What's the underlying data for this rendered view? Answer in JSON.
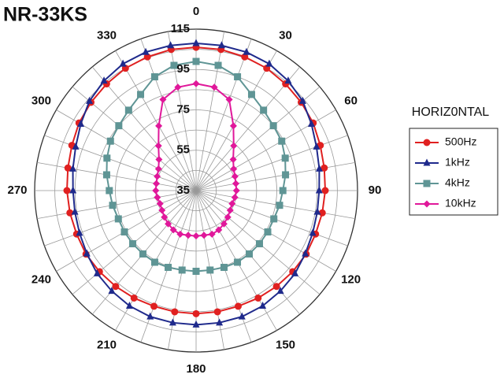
{
  "chart_data": {
    "type": "polar",
    "title": "NR-33KS",
    "legend_title": "HORIZ0NTAL",
    "theta": [
      0,
      10,
      20,
      30,
      40,
      50,
      60,
      70,
      80,
      90,
      100,
      110,
      120,
      130,
      140,
      150,
      160,
      170,
      180,
      190,
      200,
      210,
      220,
      230,
      240,
      250,
      260,
      270,
      280,
      290,
      300,
      310,
      320,
      330,
      340,
      350
    ],
    "thetaticks": [
      0,
      30,
      60,
      90,
      120,
      150,
      180,
      210,
      240,
      270,
      300,
      330
    ],
    "rlim": [
      35,
      115
    ],
    "rticks": [
      35,
      55,
      75,
      95,
      115
    ],
    "rgrid": [
      45,
      55,
      65,
      75,
      85,
      95,
      105,
      115
    ],
    "series": [
      {
        "name": "500Hz",
        "color": "#e02020",
        "marker": "circle",
        "values": [
          106,
          106,
          105.5,
          105,
          104,
          103,
          102,
          100.5,
          99.5,
          99,
          98.5,
          98,
          98,
          97.5,
          97,
          96.5,
          96,
          96,
          96,
          96,
          96,
          96.5,
          97,
          97.5,
          98,
          98,
          98.5,
          99,
          99.5,
          100.5,
          102,
          103,
          104,
          105,
          105.5,
          106
        ]
      },
      {
        "name": "1kHz",
        "color": "#1f2a8c",
        "marker": "triangle",
        "values": [
          108,
          108,
          108,
          107.5,
          106,
          104,
          101,
          98.5,
          97,
          96,
          96,
          96.5,
          97.5,
          99,
          100,
          101,
          101.5,
          101.5,
          101.5,
          101.5,
          101.5,
          101,
          100,
          99,
          97.5,
          96.5,
          96,
          96,
          97,
          98.5,
          101,
          104,
          106,
          107.5,
          108,
          108
        ]
      },
      {
        "name": "4kHz",
        "color": "#5f9595",
        "marker": "square",
        "values": [
          99,
          98,
          95,
          90,
          87,
          85,
          84,
          82,
          80,
          78,
          77,
          76,
          76,
          76,
          76,
          76,
          75.5,
          75,
          75,
          75,
          75.5,
          76,
          76,
          76,
          76,
          76,
          77,
          78,
          80,
          82,
          84,
          85,
          87,
          90,
          95,
          98
        ]
      },
      {
        "name": "10kHz",
        "color": "#e0189a",
        "marker": "diamond",
        "values": [
          88,
          87,
          83,
          72,
          64,
          59,
          56.5,
          55.5,
          55,
          55,
          54.5,
          54,
          54.5,
          55.5,
          56.5,
          57.5,
          58,
          57.5,
          57.5,
          57.5,
          58,
          57.5,
          56.5,
          55.5,
          54.5,
          54,
          54.5,
          55,
          55,
          55.5,
          56.5,
          59,
          64,
          72,
          83,
          87
        ]
      }
    ]
  }
}
